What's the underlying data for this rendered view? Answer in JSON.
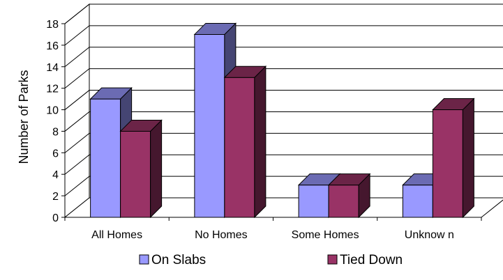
{
  "chart_data": {
    "type": "bar",
    "style": "3d-clustered-column",
    "categories": [
      "All Homes",
      "No Homes",
      "Some Homes",
      "Unknow n"
    ],
    "series": [
      {
        "name": "On Slabs",
        "values": [
          11,
          17,
          3,
          3
        ],
        "color": "#9999FF"
      },
      {
        "name": "Tied Down",
        "values": [
          8,
          13,
          3,
          10
        ],
        "color": "#993366"
      }
    ],
    "title": "",
    "xlabel": "",
    "ylabel": "Number of Parks",
    "ylim": [
      0,
      18
    ],
    "yticks": [
      "0",
      "2",
      "4",
      "6",
      "8",
      "10",
      "12",
      "14",
      "16",
      "18"
    ],
    "grid": true,
    "legend": "bottom"
  }
}
